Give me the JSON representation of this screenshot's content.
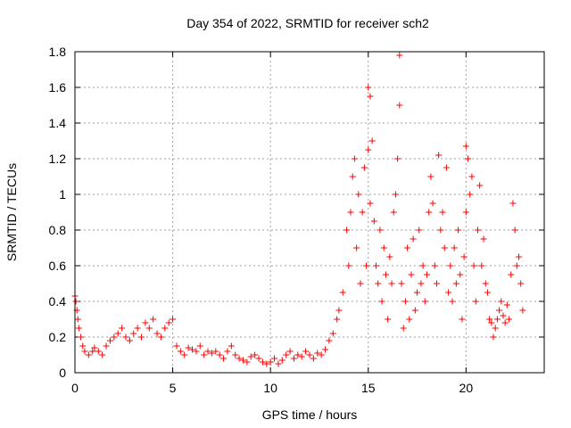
{
  "chart_data": {
    "type": "scatter",
    "title": "Day 354 of 2022, SRMTID for receiver sch2",
    "xlabel": "GPS time / hours",
    "ylabel": "SRMTID / TECUs",
    "xlim": [
      0,
      24
    ],
    "ylim": [
      0,
      1.8
    ],
    "xticks": [
      0,
      5,
      10,
      15,
      20
    ],
    "xtick_labels": [
      "0",
      "5",
      "10",
      "15",
      "20"
    ],
    "yticks": [
      0,
      0.2,
      0.4,
      0.6,
      0.8,
      1,
      1.2,
      1.4,
      1.6,
      1.8
    ],
    "ytick_labels": [
      "0",
      "0.2",
      "0.4",
      "0.6",
      "0.8",
      "1",
      "1.2",
      "1.4",
      "1.6",
      "1.8"
    ],
    "grid": true,
    "marker": "+",
    "color": "#ff0000",
    "series": [
      {
        "name": "SRMTID",
        "x": [
          0.0,
          0.05,
          0.1,
          0.15,
          0.2,
          0.3,
          0.4,
          0.5,
          0.7,
          0.9,
          1.0,
          1.2,
          1.4,
          1.6,
          1.8,
          2.0,
          2.2,
          2.4,
          2.6,
          2.8,
          3.0,
          3.2,
          3.4,
          3.6,
          3.8,
          4.0,
          4.2,
          4.4,
          4.6,
          4.8,
          5.0,
          5.2,
          5.4,
          5.6,
          5.8,
          6.0,
          6.2,
          6.4,
          6.6,
          6.8,
          7.0,
          7.2,
          7.4,
          7.6,
          7.8,
          8.0,
          8.2,
          8.4,
          8.6,
          8.8,
          9.0,
          9.2,
          9.4,
          9.6,
          9.8,
          10.0,
          10.2,
          10.4,
          10.6,
          10.8,
          11.0,
          11.2,
          11.4,
          11.6,
          11.8,
          12.0,
          12.2,
          12.4,
          12.6,
          12.8,
          13.0,
          13.2,
          13.4,
          13.5,
          13.7,
          13.9,
          14.0,
          14.1,
          14.2,
          14.3,
          14.4,
          14.5,
          14.6,
          14.7,
          14.8,
          14.9,
          15.0,
          15.0,
          15.1,
          15.1,
          15.2,
          15.3,
          15.4,
          15.5,
          15.6,
          15.7,
          15.8,
          15.9,
          16.0,
          16.1,
          16.2,
          16.3,
          16.4,
          16.5,
          16.6,
          16.6,
          16.7,
          16.8,
          16.9,
          17.0,
          17.1,
          17.2,
          17.3,
          17.4,
          17.5,
          17.6,
          17.7,
          17.8,
          17.9,
          18.0,
          18.1,
          18.2,
          18.3,
          18.4,
          18.5,
          18.6,
          18.7,
          18.8,
          18.9,
          19.0,
          19.1,
          19.2,
          19.3,
          19.4,
          19.5,
          19.6,
          19.7,
          19.8,
          19.9,
          20.0,
          20.0,
          20.1,
          20.2,
          20.3,
          20.4,
          20.5,
          20.6,
          20.7,
          20.8,
          20.9,
          21.0,
          21.1,
          21.2,
          21.3,
          21.4,
          21.5,
          21.6,
          21.7,
          21.8,
          21.9,
          22.0,
          22.1,
          22.2,
          22.3,
          22.4,
          22.5,
          22.6,
          22.7,
          22.8,
          22.9
        ],
        "y": [
          0.43,
          0.4,
          0.35,
          0.3,
          0.25,
          0.2,
          0.15,
          0.12,
          0.1,
          0.12,
          0.14,
          0.12,
          0.1,
          0.15,
          0.18,
          0.2,
          0.22,
          0.25,
          0.2,
          0.18,
          0.22,
          0.25,
          0.2,
          0.28,
          0.25,
          0.3,
          0.22,
          0.2,
          0.25,
          0.28,
          0.3,
          0.15,
          0.12,
          0.1,
          0.14,
          0.13,
          0.12,
          0.15,
          0.1,
          0.12,
          0.11,
          0.12,
          0.1,
          0.08,
          0.12,
          0.15,
          0.1,
          0.08,
          0.07,
          0.06,
          0.09,
          0.1,
          0.08,
          0.06,
          0.05,
          0.06,
          0.08,
          0.05,
          0.07,
          0.1,
          0.12,
          0.08,
          0.1,
          0.09,
          0.12,
          0.1,
          0.08,
          0.11,
          0.1,
          0.13,
          0.18,
          0.22,
          0.3,
          0.35,
          0.45,
          0.8,
          0.6,
          0.9,
          1.1,
          1.2,
          0.7,
          1.0,
          0.5,
          0.9,
          1.15,
          0.6,
          1.25,
          1.6,
          1.55,
          0.95,
          1.3,
          0.85,
          0.6,
          0.5,
          0.8,
          0.4,
          0.7,
          0.55,
          0.3,
          0.65,
          0.5,
          0.9,
          1.0,
          1.2,
          1.78,
          1.5,
          0.5,
          0.25,
          0.4,
          0.7,
          0.3,
          0.55,
          0.75,
          0.35,
          0.45,
          0.8,
          0.5,
          0.6,
          0.4,
          0.55,
          0.9,
          1.1,
          0.95,
          0.6,
          0.5,
          1.22,
          0.8,
          0.9,
          0.7,
          1.15,
          0.45,
          0.6,
          0.4,
          0.7,
          0.5,
          0.8,
          0.55,
          0.3,
          0.65,
          1.27,
          0.9,
          1.2,
          1.0,
          1.1,
          0.6,
          0.4,
          0.8,
          1.05,
          0.6,
          0.75,
          0.5,
          0.45,
          0.3,
          0.28,
          0.2,
          0.25,
          0.3,
          0.35,
          0.4,
          0.32,
          0.28,
          0.38,
          0.3,
          0.55,
          0.95,
          0.8,
          0.6,
          0.65,
          0.5,
          0.35
        ]
      }
    ]
  }
}
